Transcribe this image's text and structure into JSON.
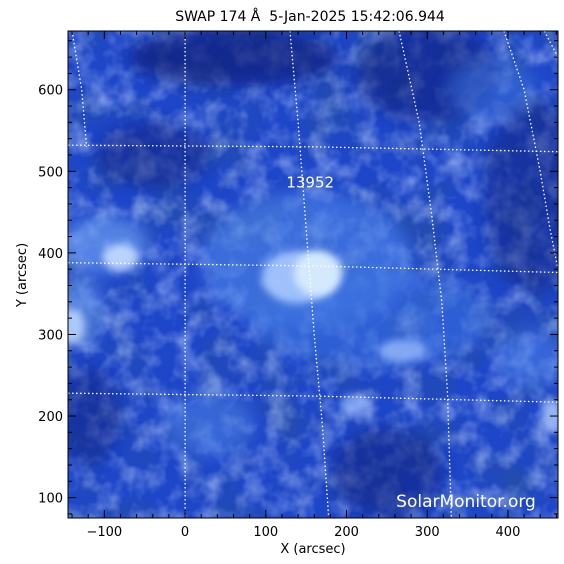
{
  "figure": {
    "title": "SWAP 174 Å  5-Jan-2025 15:42:06.944",
    "watermark": "SolarMonitor.org",
    "x_axis": {
      "label": "X (arcsec)",
      "range": [
        -145,
        462
      ],
      "ticks": [
        -100,
        0,
        100,
        200,
        300,
        400
      ],
      "tick_labels": [
        "−100",
        "0",
        "100",
        "200",
        "300",
        "400"
      ]
    },
    "y_axis": {
      "label": "Y (arcsec)",
      "range": [
        75,
        672
      ],
      "ticks": [
        100,
        200,
        300,
        400,
        500,
        600
      ],
      "tick_labels": [
        "100",
        "200",
        "300",
        "400",
        "500",
        "600"
      ]
    },
    "active_region": {
      "number": "13952",
      "x": 155,
      "y": 480
    },
    "colors": {
      "image_base": "#1e46c8",
      "image_dark": "#0a1c78",
      "image_bright": "#d8ecff",
      "grid": "#ffffff",
      "axes": "#000000",
      "label": "#ffffff"
    }
  }
}
